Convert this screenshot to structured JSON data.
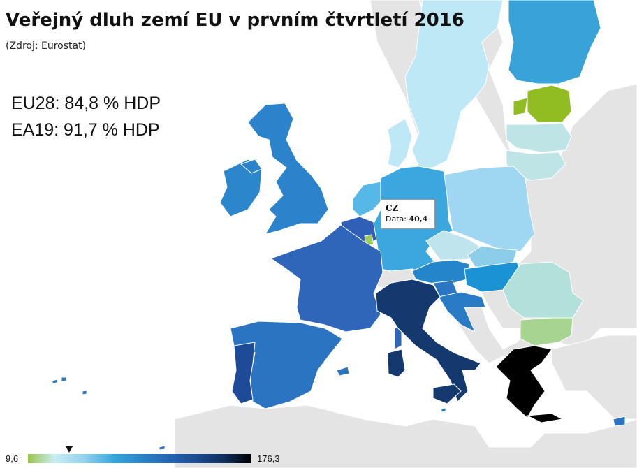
{
  "header": {
    "title": "Veřejný dluh zemí EU v prvním čtvrtletí 2016",
    "source": "(Zdroj: Eurostat)"
  },
  "stats": {
    "eu28": "EU28: 84,8 % HDP",
    "ea19": "EA19: 91,7 % HDP"
  },
  "tooltip": {
    "country": "CZ",
    "label": "Data:",
    "value": "40,4"
  },
  "legend": {
    "min": "9,6",
    "max": "176,3",
    "marker_value": 40.4,
    "colors": [
      "#9ac64a",
      "#c9ecf5",
      "#93d2ec",
      "#38a9de",
      "#2a80c8",
      "#2462b0",
      "#1b4a8f",
      "#0f2d59",
      "#000000"
    ]
  },
  "map_colors": {
    "background": "#ffffff",
    "non_eu": "#e4e4e4",
    "border": "#ffffff"
  },
  "countries": [
    {
      "code": "FI",
      "color": "#39a3d9"
    },
    {
      "code": "SE",
      "color": "#bfe8f6"
    },
    {
      "code": "EE",
      "color": "#91bd22"
    },
    {
      "code": "LV",
      "color": "#bfe4e6"
    },
    {
      "code": "LT",
      "color": "#bfe4e6"
    },
    {
      "code": "DK",
      "color": "#bfe8f6"
    },
    {
      "code": "IE",
      "color": "#2c86cc"
    },
    {
      "code": "UK",
      "color": "#2b84cb"
    },
    {
      "code": "NL",
      "color": "#55b8e6"
    },
    {
      "code": "BE",
      "color": "#2f5fb6"
    },
    {
      "code": "LU",
      "color": "#9ccc5c"
    },
    {
      "code": "DE",
      "color": "#3ca6de"
    },
    {
      "code": "PL",
      "color": "#9fd6f1"
    },
    {
      "code": "CZ",
      "color": "#bfe4ee"
    },
    {
      "code": "SK",
      "color": "#8ccdea"
    },
    {
      "code": "AT",
      "color": "#2585cb"
    },
    {
      "code": "HU",
      "color": "#1b92d4"
    },
    {
      "code": "SI",
      "color": "#2a76c3"
    },
    {
      "code": "HR",
      "color": "#2a7bc6"
    },
    {
      "code": "RO",
      "color": "#b2e0db"
    },
    {
      "code": "BG",
      "color": "#a7d490"
    },
    {
      "code": "FR",
      "color": "#2f66ba"
    },
    {
      "code": "ES",
      "color": "#2a74c2"
    },
    {
      "code": "PT",
      "color": "#1e4b97"
    },
    {
      "code": "IT",
      "color": "#14396f"
    },
    {
      "code": "GR",
      "color": "#000000"
    },
    {
      "code": "CY",
      "color": "#2a74c2"
    },
    {
      "code": "MT",
      "color": "#2a74c2"
    }
  ]
}
